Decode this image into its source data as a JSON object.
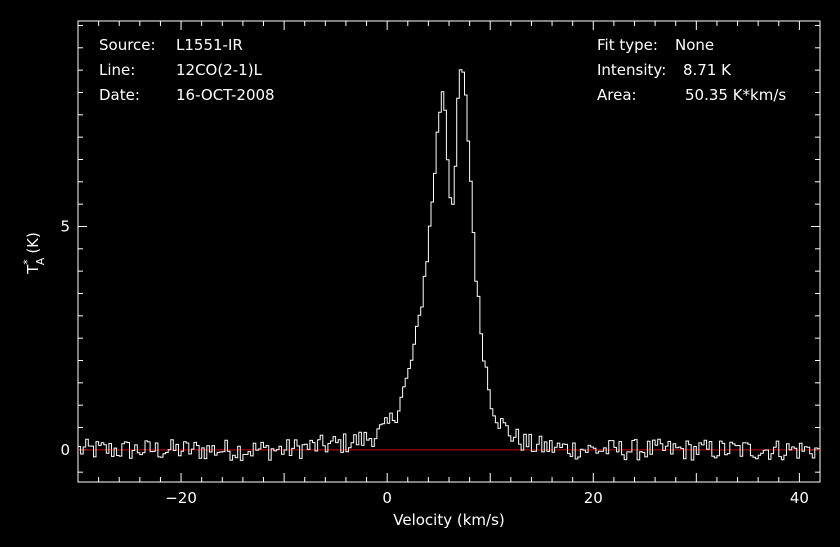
{
  "header": {
    "source_label": "Source:",
    "source_value": "L1551-IR",
    "line_label": "Line:",
    "line_value": "12CO(2-1)L",
    "date_label": "Date:",
    "date_value": "16-OCT-2008",
    "fit_label": "Fit type:",
    "fit_value": "None",
    "intensity_label": "Intensity:",
    "intensity_value": "8.71 K",
    "area_label": "Area:",
    "area_value": "50.35 K*km/s"
  },
  "chart_data": {
    "type": "line",
    "xlabel": "Velocity (km/s)",
    "ylabel_main": "T",
    "ylabel_sup": "*",
    "ylabel_sub": "A",
    "ylabel_unit": "(K)",
    "xlim": [
      -30,
      42
    ],
    "ylim": [
      -0.72,
      9.6
    ],
    "xticks": [
      -20,
      0,
      20,
      40
    ],
    "xtick_labels": [
      "−20",
      "0",
      "20",
      "40"
    ],
    "yticks": [
      0,
      5
    ],
    "ytick_labels": [
      "0",
      "5"
    ],
    "baseline": 0,
    "grid": false,
    "colors": {
      "background": "#000000",
      "spectrum": "#ffffff",
      "baseline": "#cc0000",
      "axes": "#ffffff"
    },
    "series": [
      {
        "x": [
          -30,
          -25,
          -20,
          -15,
          -10,
          -8,
          -6,
          -4,
          -2,
          -1,
          0,
          1,
          2,
          3,
          3.5,
          4,
          4.5,
          5,
          5.5,
          6,
          6.5,
          7,
          7.5,
          8,
          8.5,
          9,
          9.5,
          10,
          10.5,
          11,
          12,
          13,
          14,
          16,
          20,
          25,
          30,
          35,
          40,
          42
        ],
        "y": [
          0,
          0,
          0,
          0,
          0,
          0.05,
          0.1,
          0.15,
          0.25,
          0.35,
          0.5,
          0.9,
          1.6,
          2.7,
          3.6,
          4.6,
          5.9,
          7.4,
          8.3,
          6.0,
          5.3,
          8.6,
          8.2,
          6.6,
          4.3,
          2.9,
          2.0,
          1.2,
          0.85,
          0.6,
          0.35,
          0.2,
          0.1,
          0.05,
          0,
          0,
          0,
          0,
          0,
          0
        ]
      }
    ]
  }
}
